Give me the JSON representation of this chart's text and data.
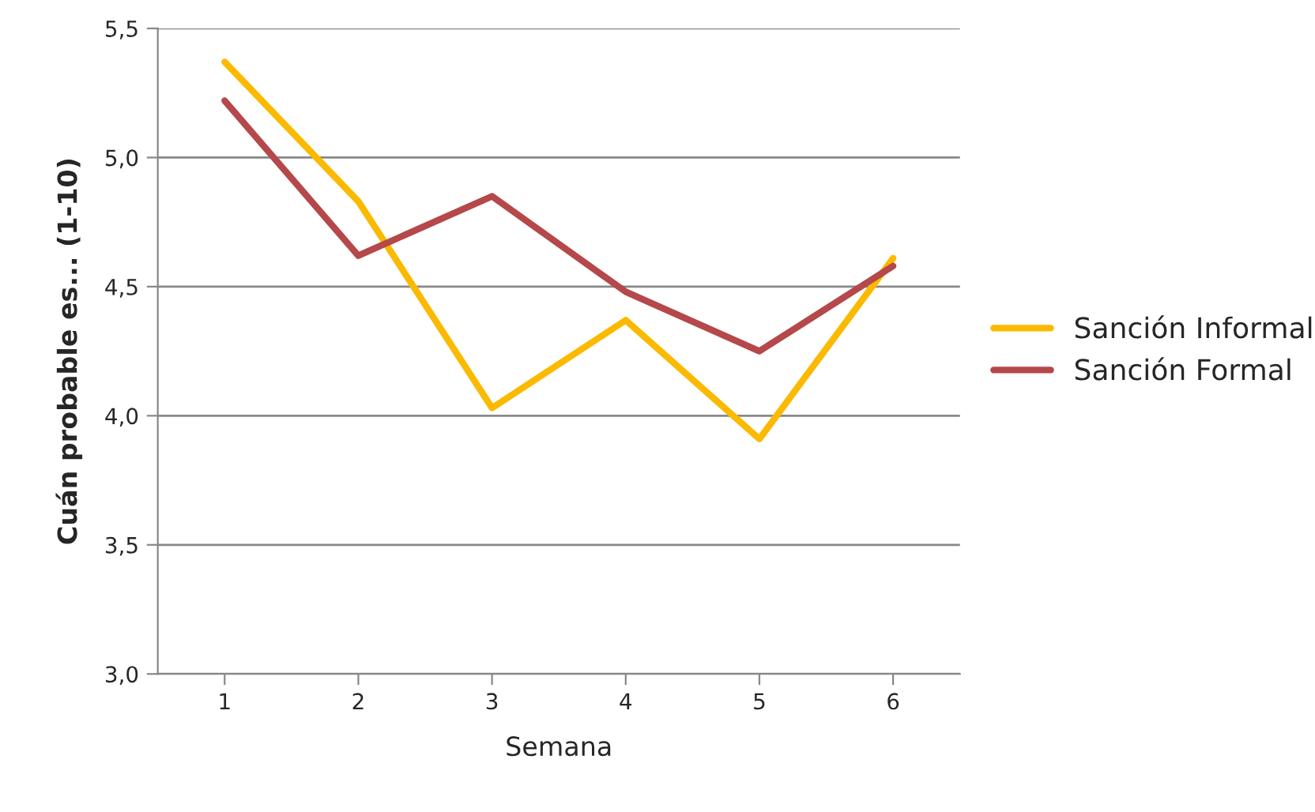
{
  "chart_data": {
    "type": "line",
    "xlabel": "Semana",
    "ylabel": "Cuán probable es... (1-10)",
    "categories": [
      "1",
      "2",
      "3",
      "4",
      "5",
      "6"
    ],
    "series": [
      {
        "name": "Sanción Informal",
        "color": "#fbb900",
        "values": [
          5.37,
          4.83,
          4.03,
          4.37,
          3.91,
          4.61
        ]
      },
      {
        "name": "Sanción Formal",
        "color": "#b5484a",
        "values": [
          5.22,
          4.62,
          4.85,
          4.48,
          4.25,
          4.58
        ]
      }
    ],
    "ylim": [
      3.0,
      5.5
    ],
    "yticks": [
      {
        "value": 3.0,
        "label": "3,0"
      },
      {
        "value": 3.5,
        "label": "3,5"
      },
      {
        "value": 4.0,
        "label": "4,0"
      },
      {
        "value": 4.5,
        "label": "4,5"
      },
      {
        "value": 5.0,
        "label": "5,0"
      },
      {
        "value": 5.5,
        "label": "5,5"
      }
    ],
    "grid": "y",
    "legend": "right",
    "marker": "none",
    "line_style": "solid"
  }
}
